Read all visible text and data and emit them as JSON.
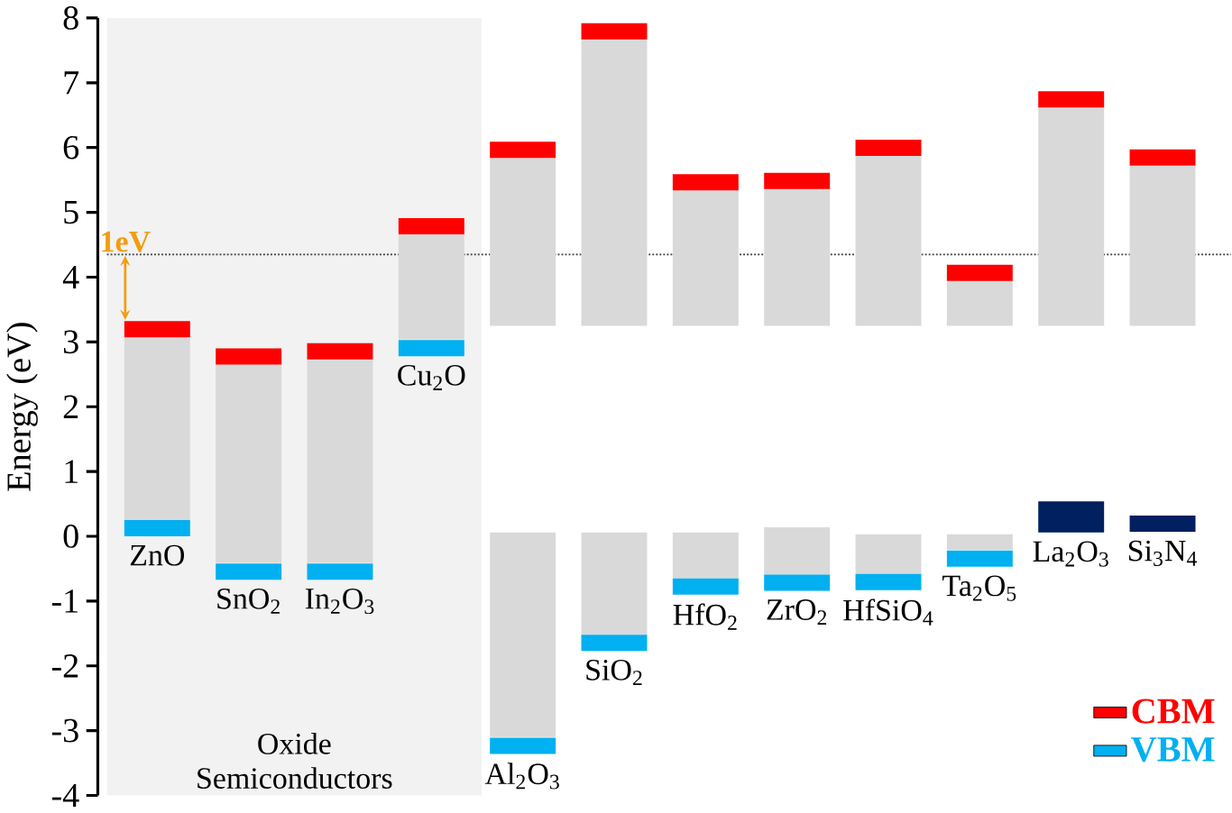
{
  "chart_data": {
    "type": "bar",
    "ylabel": "Energy (eV)",
    "categories": [
      "ZnO",
      "SnO$_{2}$",
      "In$_{2}$O$_{3}$",
      "Cu$_{2}$O",
      "Al$_{2}$O$_{3}$",
      "SiO$_{2}$",
      "HfO$_{2}$",
      "ZrO$_{2}$",
      "HfSiO$_{4}$",
      "Ta$_{2}$O$_{5}$",
      "La$_{2}$O$_{3}$",
      "Si$_{3}$N$_{4}$"
    ],
    "series": [
      {
        "color": "#d9d9d9",
        "base": [
          0.24,
          -0.41,
          -0.41,
          3.04,
          3.25,
          3.25,
          3.25,
          3.25,
          3.25,
          3.25,
          3.25,
          3.25
        ],
        "values": [
          2.83,
          3.06,
          3.14,
          1.62,
          2.59,
          4.42,
          2.09,
          2.11,
          2.62,
          0.69,
          3.37,
          2.47
        ]
      },
      {
        "color": "#d9d9d9",
        "base": [
          null,
          null,
          null,
          null,
          -3.1,
          -1.52,
          -0.65,
          -0.59,
          -0.58,
          -0.21,
          null,
          null
        ],
        "values": [
          null,
          null,
          null,
          null,
          3.16,
          1.58,
          0.71,
          0.73,
          0.61,
          0.24,
          null,
          null
        ]
      },
      {
        "name": "CBM",
        "color": "#ff0000",
        "base": [
          3.07,
          2.65,
          2.73,
          4.66,
          5.84,
          7.67,
          5.34,
          5.36,
          5.87,
          3.94,
          6.62,
          5.72
        ],
        "values": [
          0.25,
          0.25,
          0.25,
          0.25,
          0.25,
          0.25,
          0.25,
          0.25,
          0.25,
          0.25,
          0.25,
          0.25
        ]
      },
      {
        "name": "VBM",
        "color": "#00b0f0",
        "base": [
          0,
          -0.67,
          -0.67,
          2.78,
          -3.36,
          -1.77,
          -0.9,
          -0.84,
          -0.83,
          -0.47,
          null,
          null
        ],
        "values": [
          0.25,
          0.25,
          0.25,
          0.25,
          0.25,
          0.25,
          0.25,
          0.25,
          0.25,
          0.25,
          null,
          null
        ]
      },
      {
        "color": "#002060",
        "base": [
          null,
          null,
          null,
          null,
          null,
          null,
          null,
          null,
          null,
          null,
          0.06,
          0.07
        ],
        "values": [
          null,
          null,
          null,
          null,
          null,
          null,
          null,
          null,
          null,
          null,
          0.48,
          0.25
        ]
      }
    ],
    "ylim": [
      -4,
      8
    ],
    "yticks": [
      -4,
      -3,
      -2,
      -1,
      0,
      1,
      2,
      3,
      4,
      5,
      6,
      7,
      8
    ],
    "ref_lines": [
      {
        "axis": "y",
        "value": 4.35,
        "line_style": "dotted",
        "color": "#404040"
      }
    ],
    "bands": [
      {
        "axis": "x",
        "from": "ZnO",
        "to": "Cu$_{2}$O",
        "label": "Oxide Semiconductors",
        "color": "#f2f2f2"
      }
    ],
    "annotations": [
      {
        "text": "1eV",
        "x": "ZnO",
        "y": 4.35
      }
    ],
    "legend": "bottom right"
  }
}
